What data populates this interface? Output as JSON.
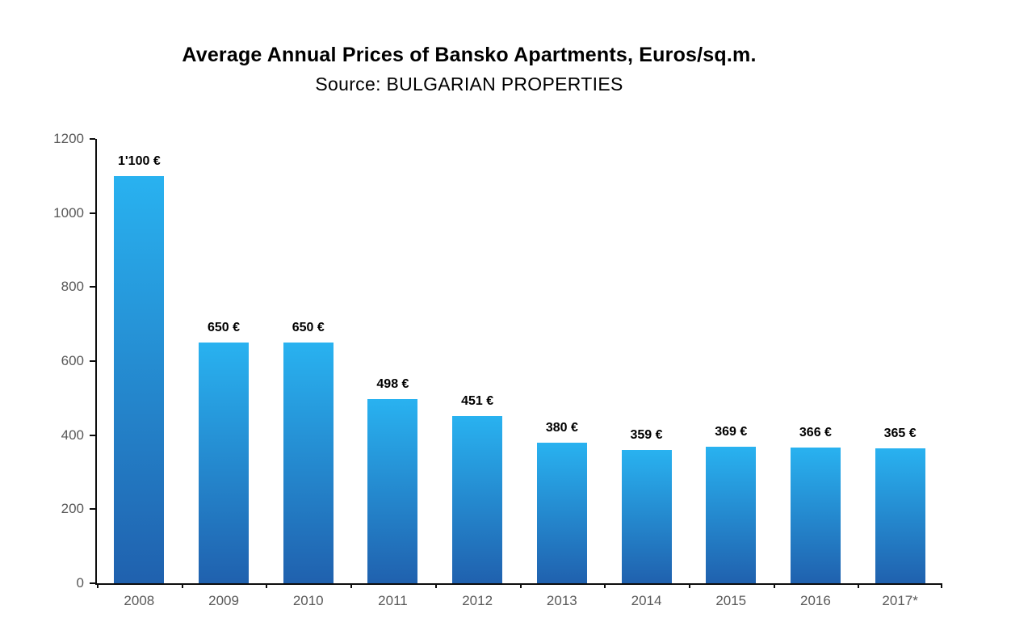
{
  "chart_data": {
    "type": "bar",
    "title": "Average Annual Prices of Bansko Apartments, Euros/sq.m.",
    "subtitle": "Source: BULGARIAN PROPERTIES",
    "categories": [
      "2008",
      "2009",
      "2010",
      "2011",
      "2012",
      "2013",
      "2014",
      "2015",
      "2016",
      "2017*"
    ],
    "values": [
      1100,
      650,
      650,
      498,
      451,
      380,
      359,
      369,
      366,
      365
    ],
    "value_labels": [
      "1'100 €",
      "650 €",
      "650 €",
      "498 €",
      "451 €",
      "380 €",
      "359 €",
      "369 €",
      "366 €",
      "365 €"
    ],
    "xlabel": "",
    "ylabel": "",
    "ylim": [
      0,
      1200
    ],
    "yticks": [
      0,
      200,
      400,
      600,
      800,
      1000,
      1200
    ],
    "grid": false,
    "legend": false,
    "colors": {
      "bar_gradient_top": "#29b2f0",
      "bar_gradient_bottom": "#2061ae",
      "axis": "#0d0d0d",
      "tick_label": "#595959",
      "value_label": "#000000",
      "background": "#ffffff"
    }
  }
}
